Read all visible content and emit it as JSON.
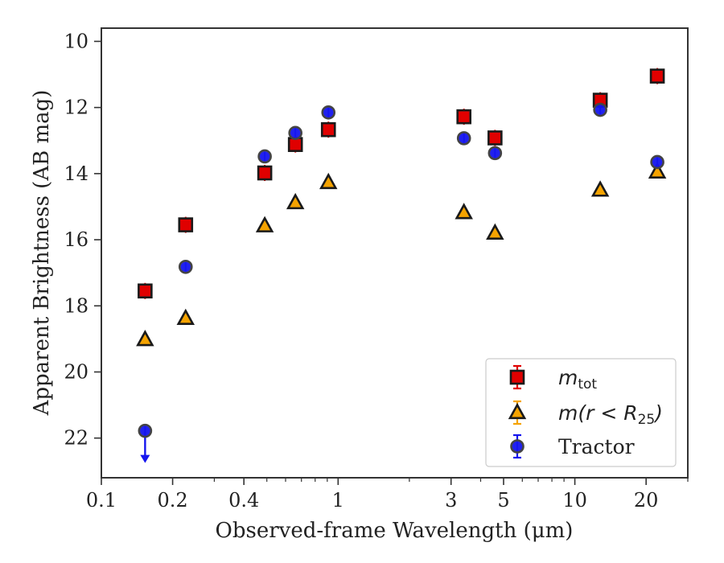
{
  "chart_data": {
    "type": "scatter",
    "xlabel": "Observed-frame Wavelength (μm)",
    "ylabel": "Apparent Brightness (AB mag)",
    "x_scale": "log",
    "xlim": [
      0.1,
      30
    ],
    "ylim": [
      23.2,
      9.6
    ],
    "y_inverted": true,
    "x_ticks": [
      {
        "value": 0.1,
        "label": "0.1"
      },
      {
        "value": 0.2,
        "label": "0.2"
      },
      {
        "value": 0.4,
        "label": "0.4"
      },
      {
        "value": 1,
        "label": "1"
      },
      {
        "value": 3,
        "label": "3"
      },
      {
        "value": 5,
        "label": "5"
      },
      {
        "value": 10,
        "label": "10"
      },
      {
        "value": 20,
        "label": "20"
      }
    ],
    "y_ticks": [
      {
        "value": 10,
        "label": "10"
      },
      {
        "value": 12,
        "label": "12"
      },
      {
        "value": 14,
        "label": "14"
      },
      {
        "value": 16,
        "label": "16"
      },
      {
        "value": 18,
        "label": "18"
      },
      {
        "value": 20,
        "label": "20"
      },
      {
        "value": 22,
        "label": "22"
      }
    ],
    "grid": false,
    "legend": "bottom-right",
    "series": [
      {
        "name": "mtot",
        "label_main": "m",
        "label_sub": "tot",
        "marker": "square",
        "color": "#e00000",
        "edge_color": "#1a1a1a",
        "points": [
          {
            "x": 0.153,
            "y": 17.55
          },
          {
            "x": 0.227,
            "y": 15.55
          },
          {
            "x": 0.49,
            "y": 13.98
          },
          {
            "x": 0.66,
            "y": 13.12
          },
          {
            "x": 0.91,
            "y": 12.67
          },
          {
            "x": 3.4,
            "y": 12.28
          },
          {
            "x": 4.6,
            "y": 12.92
          },
          {
            "x": 12.8,
            "y": 11.78
          },
          {
            "x": 22.3,
            "y": 11.05
          }
        ]
      },
      {
        "name": "m(r < R25)",
        "label_main": "m(r < R",
        "label_sub": "25",
        "label_end": ")",
        "marker": "triangle",
        "color": "#f5a300",
        "edge_color": "#1a1a1a",
        "points": [
          {
            "x": 0.153,
            "y": 19.02
          },
          {
            "x": 0.227,
            "y": 18.38
          },
          {
            "x": 0.49,
            "y": 15.58
          },
          {
            "x": 0.66,
            "y": 14.88
          },
          {
            "x": 0.91,
            "y": 14.27
          },
          {
            "x": 3.4,
            "y": 15.18
          },
          {
            "x": 4.6,
            "y": 15.8
          },
          {
            "x": 12.8,
            "y": 14.5
          },
          {
            "x": 22.3,
            "y": 13.95
          }
        ]
      },
      {
        "name": "Tractor",
        "label_main": "Tractor",
        "marker": "circle",
        "color": "#1515ee",
        "edge_color": "#444444",
        "points": [
          {
            "x": 0.153,
            "y": 21.78,
            "upper_limit": true
          },
          {
            "x": 0.227,
            "y": 16.82
          },
          {
            "x": 0.49,
            "y": 13.48
          },
          {
            "x": 0.66,
            "y": 12.77
          },
          {
            "x": 0.91,
            "y": 12.15
          },
          {
            "x": 3.4,
            "y": 12.93
          },
          {
            "x": 4.6,
            "y": 13.38
          },
          {
            "x": 12.8,
            "y": 12.07
          },
          {
            "x": 22.3,
            "y": 13.65
          }
        ]
      }
    ]
  }
}
